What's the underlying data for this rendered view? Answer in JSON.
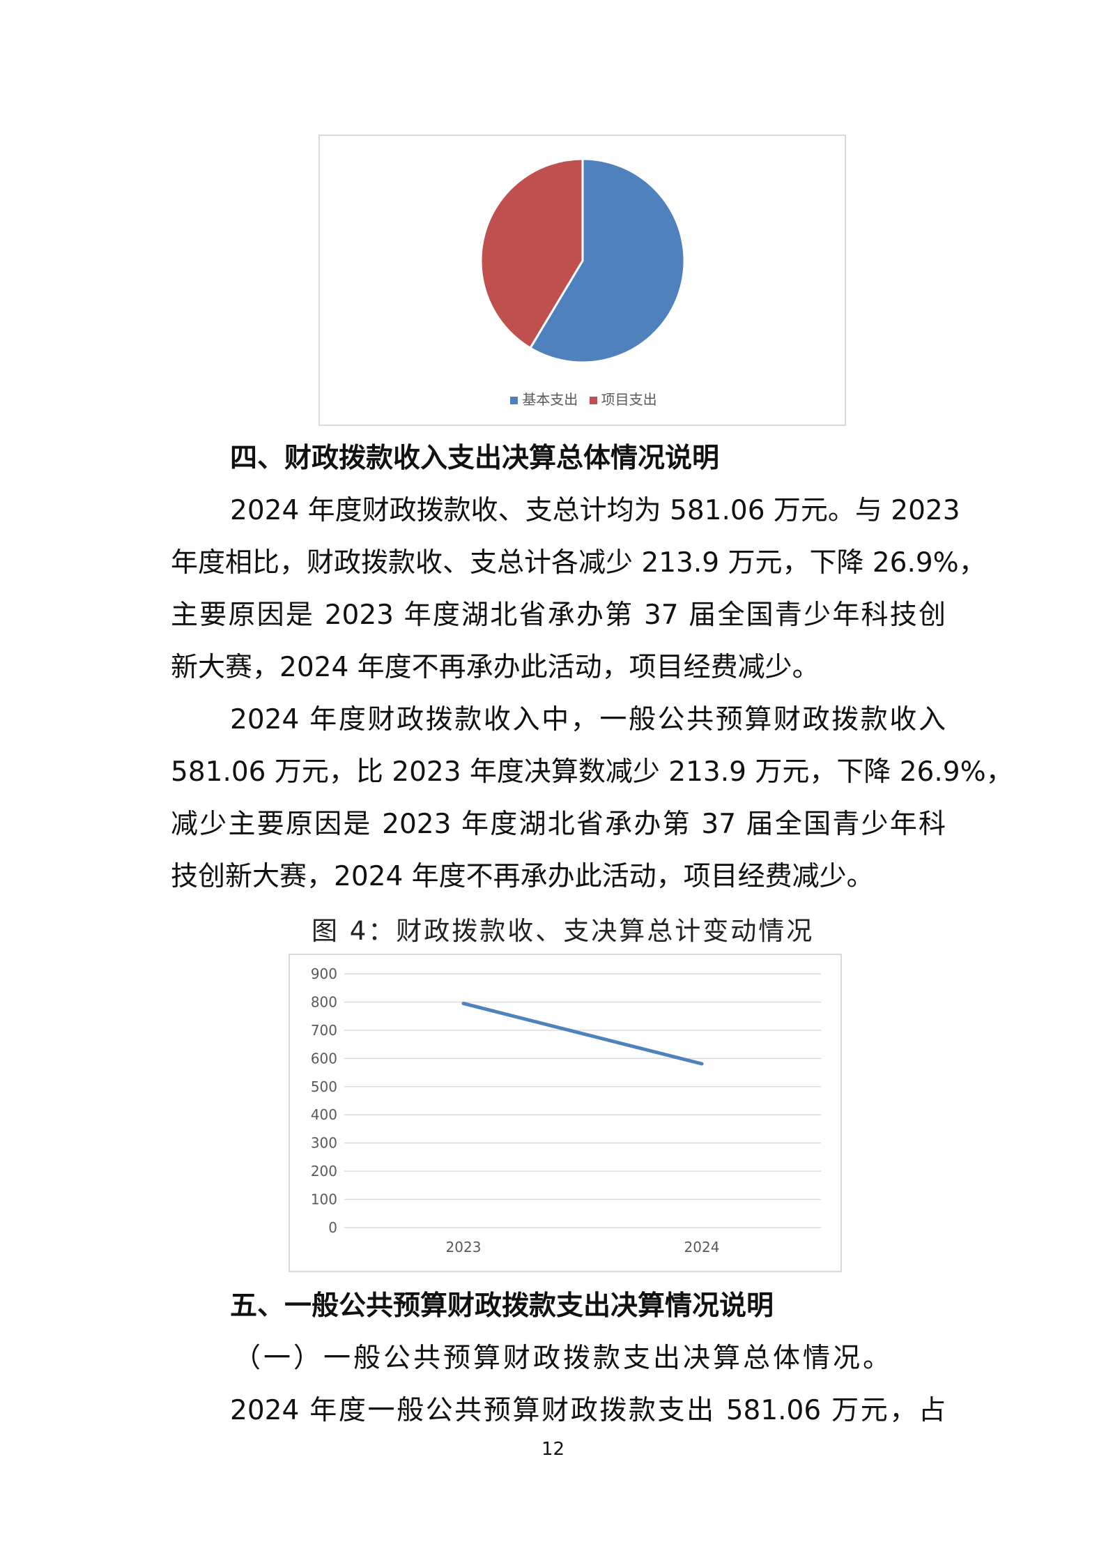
{
  "pie_chart": {
    "chart_data": {
      "type": "pie",
      "slices": [
        {
          "name": "基本支出",
          "share_percent": 58.6,
          "color": "#4f81bd"
        },
        {
          "name": "项目支出",
          "share_percent": 41.4,
          "color": "#c0504d"
        }
      ],
      "legend": "bottom"
    }
  },
  "section4": {
    "heading": "四、财政拨款收入支出决算总体情况说明",
    "p1_lines": [
      "2024 年度财政拨款收、支总计均为 581.06 万元。与 2023",
      "年度相比，财政拨款收、支总计各减少 213.9 万元，下降 26.9%，",
      "主要原因是 2023 年度湖北省承办第 37 届全国青少年科技创",
      "新大赛，2024 年度不再承办此活动，项目经费减少。"
    ],
    "p2_lines": [
      "2024 年度财政拨款收入中，一般公共预算财政拨款收入",
      "581.06 万元，比 2023 年度决算数减少 213.9 万元，下降 26.9%，",
      "减少主要原因是 2023 年度湖北省承办第 37 届全国青少年科",
      "技创新大赛，2024 年度不再承办此活动，项目经费减少。"
    ],
    "figure_caption": "图 4：财政拨款收、支决算总计变动情况"
  },
  "line_chart": {
    "chart_data": {
      "type": "line",
      "categories": [
        "2023",
        "2024"
      ],
      "series": [
        {
          "values": [
            794.96,
            581.06
          ],
          "color": "#4f81bd"
        }
      ],
      "ylim": [
        0,
        900
      ],
      "yticks": [
        "0",
        "100",
        "200",
        "300",
        "400",
        "500",
        "600",
        "700",
        "800",
        "900"
      ],
      "grid": true
    }
  },
  "section5": {
    "heading": "五、一般公共预算财政拨款支出决算情况说明",
    "subheading": "（一）一般公共预算财政拨款支出决算总体情况。",
    "p1_line": "2024 年度一般公共预算财政拨款支出 581.06 万元，占"
  },
  "page_number": "12"
}
